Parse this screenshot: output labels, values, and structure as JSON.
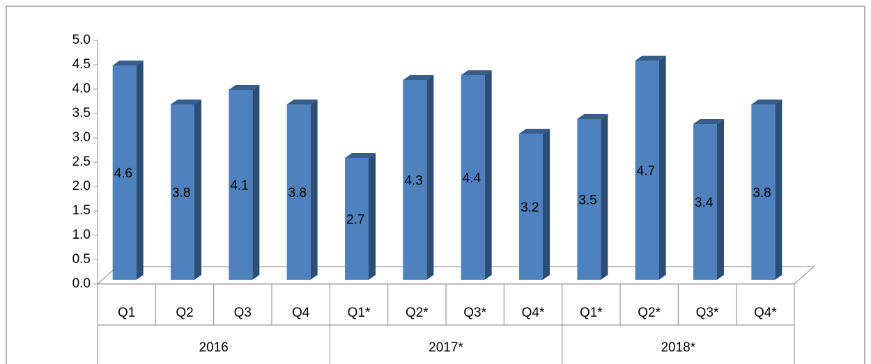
{
  "chart_data": {
    "type": "bar3d",
    "groups": [
      {
        "name": "2016",
        "categories": [
          "Q1",
          "Q2",
          "Q3",
          "Q4"
        ]
      },
      {
        "name": "2017*",
        "categories": [
          "Q1*",
          "Q2*",
          "Q3*",
          "Q4*"
        ]
      },
      {
        "name": "2018*",
        "categories": [
          "Q1*",
          "Q2*",
          "Q3*",
          "Q4*"
        ]
      }
    ],
    "values": [
      4.6,
      3.8,
      4.1,
      3.8,
      2.7,
      4.3,
      4.4,
      3.2,
      3.5,
      4.7,
      3.4,
      3.8
    ],
    "color": "#4f81bd",
    "ylim": [
      0,
      5
    ],
    "yticks": [
      {
        "value": 0,
        "label": "0.0"
      },
      0.5,
      {
        "value": 1,
        "label": "1.0"
      },
      1.5,
      {
        "value": 2,
        "label": "2.0"
      },
      2.5,
      {
        "value": 3,
        "label": "3.0"
      },
      3.5,
      {
        "value": 4,
        "label": "4.0"
      },
      4.5,
      {
        "value": 5,
        "label": "5.0"
      }
    ]
  }
}
